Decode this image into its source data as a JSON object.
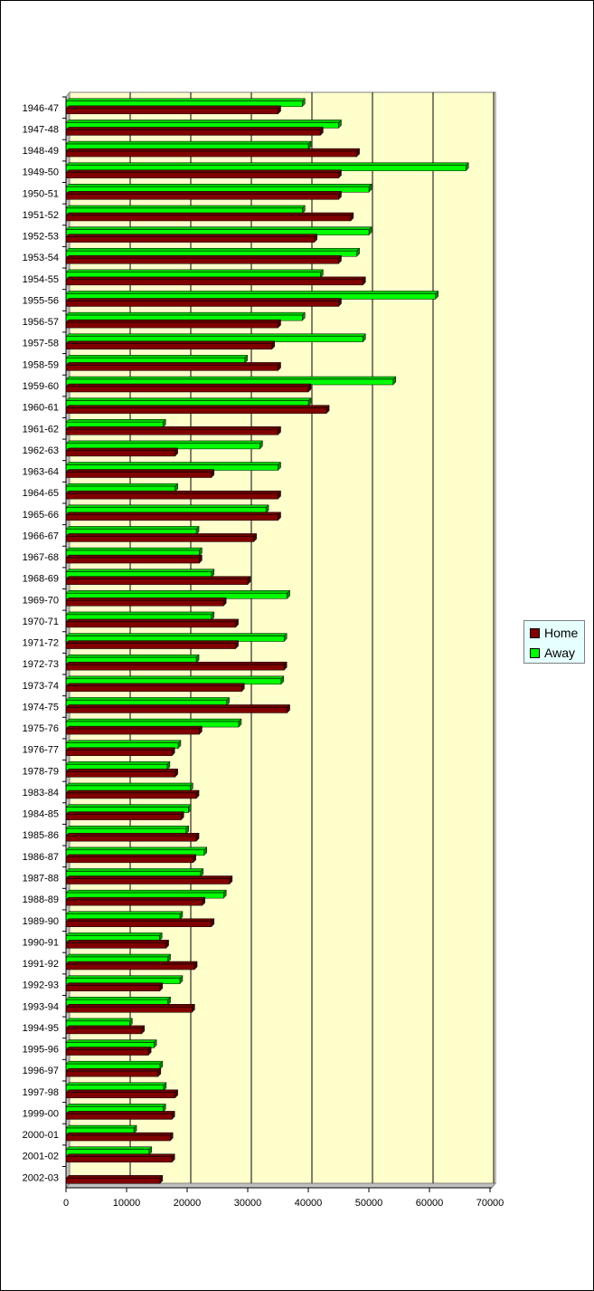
{
  "chart_data": {
    "type": "bar",
    "orientation": "horizontal",
    "categories": [
      "1946-47",
      "1947-48",
      "1948-49",
      "1949-50",
      "1950-51",
      "1951-52",
      "1952-53",
      "1953-54",
      "1954-55",
      "1955-56",
      "1956-57",
      "1957-58",
      "1958-59",
      "1959-60",
      "1960-61",
      "1961-62",
      "1962-63",
      "1963-64",
      "1964-65",
      "1965-66",
      "1966-67",
      "1967-68",
      "1968-69",
      "1969-70",
      "1970-71",
      "1971-72",
      "1972-73",
      "1973-74",
      "1974-75",
      "1975-76",
      "1976-77",
      "1978-79",
      "1983-84",
      "1984-85",
      "1985-86",
      "1986-87",
      "1987-88",
      "1988-89",
      "1989-90",
      "1990-91",
      "1991-92",
      "1992-93",
      "1993-94",
      "1994-95",
      "1995-96",
      "1996-97",
      "1997-98",
      "1999-00",
      "2000-01",
      "2001-02",
      "2002-03"
    ],
    "series": [
      {
        "name": "Home",
        "color": "#800000",
        "values": [
          35000,
          42000,
          48000,
          45000,
          45000,
          47000,
          41000,
          45000,
          49000,
          45000,
          35000,
          34000,
          35000,
          40000,
          43000,
          35000,
          18000,
          24000,
          35000,
          35000,
          31000,
          22000,
          30000,
          26000,
          28000,
          28000,
          36000,
          29000,
          36500,
          22000,
          17500,
          18000,
          21500,
          19000,
          21500,
          21000,
          27000,
          22500,
          24000,
          16500,
          21200,
          15500,
          20800,
          12500,
          13600,
          15200,
          18000,
          17500,
          17200,
          17500,
          15500
        ]
      },
      {
        "name": "Away",
        "color": "#00ff00",
        "values": [
          39000,
          45000,
          40000,
          66000,
          50000,
          39000,
          50000,
          48000,
          42000,
          61000,
          39000,
          49000,
          29500,
          54000,
          40000,
          16000,
          32000,
          35000,
          18000,
          33000,
          21500,
          22000,
          24000,
          36500,
          24000,
          36000,
          21500,
          35500,
          26500,
          28500,
          18500,
          16700,
          20500,
          20200,
          19800,
          22800,
          22200,
          26000,
          18800,
          15400,
          16800,
          18800,
          16800,
          10500,
          14500,
          15500,
          16100,
          16000,
          11200,
          13700,
          null
        ]
      }
    ],
    "x_ticks": [
      "0",
      "10000",
      "20000",
      "30000",
      "40000",
      "50000",
      "60000",
      "70000"
    ],
    "xlim": [
      0,
      70000
    ],
    "legend_position": "right",
    "grid": true,
    "plot_background": "#ffffcc"
  }
}
